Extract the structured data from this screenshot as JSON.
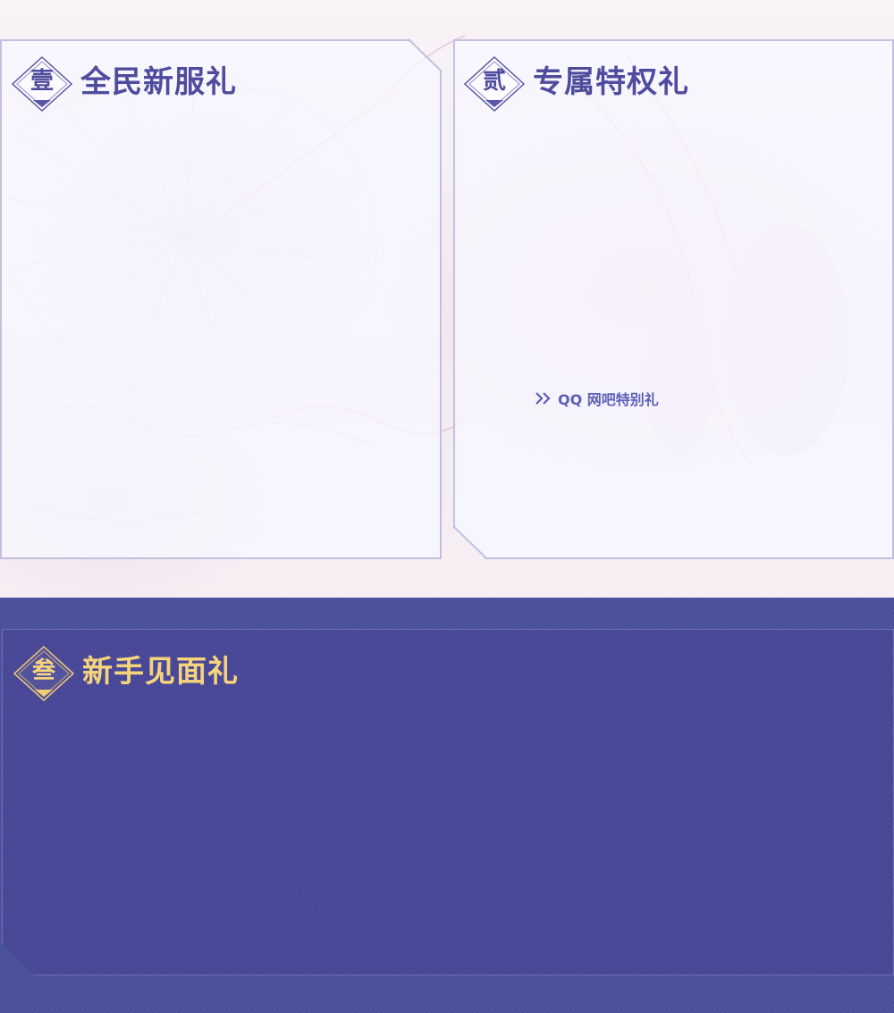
{
  "section1": {
    "badge_char": "壹",
    "title": "全民新服礼"
  },
  "section2": {
    "badge_char": "贰",
    "title": "专属特权礼",
    "link": {
      "label": "QQ 网吧特别礼",
      "icon": "double-chevron-right-icon"
    }
  },
  "section3": {
    "badge_char": "叁",
    "title": "新手见面礼"
  },
  "colors": {
    "light_title": "#4f4c9e",
    "gold_title": "#f5d47c",
    "dark_panel": "#484797",
    "link": "#5d5eb6"
  }
}
